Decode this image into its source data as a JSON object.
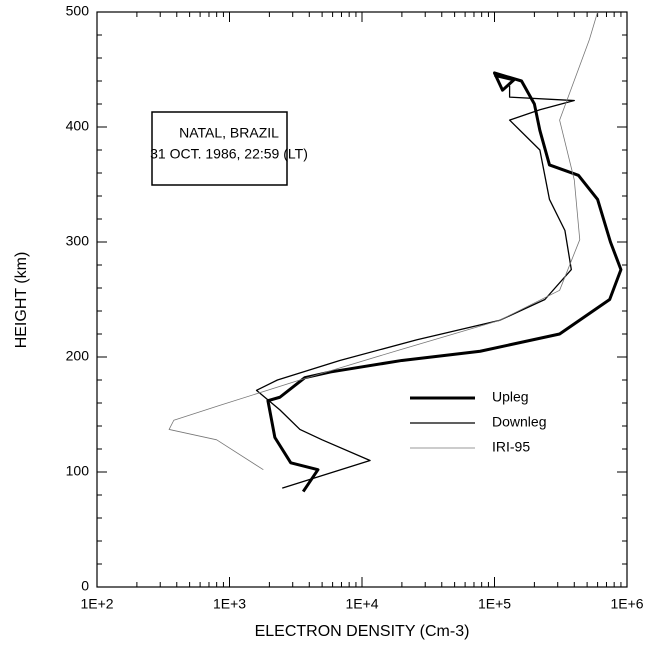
{
  "chart_data": {
    "type": "line",
    "xlabel": "ELECTRON DENSITY (Cm-3)",
    "ylabel": "HEIGHT (km)",
    "annotation": [
      "NATAL, BRAZIL",
      "31 OCT. 1986, 22:59 (LT)"
    ],
    "xscale": "log",
    "xlim": [
      100,
      1000000
    ],
    "ylim": [
      0,
      500
    ],
    "xticks": [
      {
        "value": 100,
        "label": "1E+2"
      },
      {
        "value": 1000,
        "label": "1E+3"
      },
      {
        "value": 10000,
        "label": "1E+4"
      },
      {
        "value": 100000,
        "label": "1E+5"
      },
      {
        "value": 1000000,
        "label": "1E+6"
      }
    ],
    "yticks": [
      0,
      100,
      200,
      300,
      400,
      500
    ],
    "legend": "lower right",
    "series": [
      {
        "name": "Upleg",
        "color": "#000000",
        "width": 3,
        "x": [
          3600,
          4650,
          2900,
          2200,
          1950,
          2400,
          3700,
          5800,
          20000,
          78000,
          310000,
          740000,
          900000,
          750000,
          600000,
          430000,
          260000,
          220000,
          200000,
          160000,
          100000,
          115000,
          140000,
          100000
        ],
        "values": [
          83,
          102,
          108,
          130,
          162,
          165,
          182,
          187,
          197,
          205,
          220,
          250,
          276,
          300,
          337,
          358,
          367,
          397,
          420,
          440,
          447,
          432,
          441,
          445
        ]
      },
      {
        "name": "Downleg",
        "color": "#000000",
        "width": 1.3,
        "x": [
          2500,
          11500,
          5000,
          3400,
          2400,
          1600,
          2300,
          6800,
          26000,
          110000,
          240000,
          380000,
          340000,
          260000,
          220000,
          130000,
          220000,
          400000,
          130000,
          130000
        ],
        "values": [
          86,
          110,
          128,
          137,
          154,
          171,
          180,
          197,
          215,
          232,
          250,
          276,
          310,
          337,
          380,
          406,
          415,
          423,
          426,
          436
        ]
      },
      {
        "name": "IRI-95",
        "color": "#777777",
        "width": 0.8,
        "x": [
          1800,
          800,
          350,
          380,
          850,
          3400,
          19000,
          110000,
          310000,
          440000,
          400000,
          310000,
          520000,
          600000
        ],
        "values": [
          102,
          128,
          137,
          145,
          158,
          180,
          206,
          232,
          258,
          302,
          354,
          406,
          476,
          500
        ]
      }
    ]
  }
}
